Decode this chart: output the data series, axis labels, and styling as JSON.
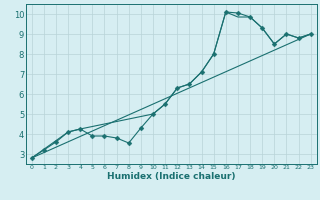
{
  "title": "",
  "xlabel": "Humidex (Indice chaleur)",
  "background_color": "#d6eef2",
  "grid_color": "#b8d4d8",
  "line_color": "#1a7070",
  "marker_size": 2.5,
  "xlim": [
    -0.5,
    23.5
  ],
  "ylim": [
    2.5,
    10.5
  ],
  "xticks": [
    0,
    1,
    2,
    3,
    4,
    5,
    6,
    7,
    8,
    9,
    10,
    11,
    12,
    13,
    14,
    15,
    16,
    17,
    18,
    19,
    20,
    21,
    22,
    23
  ],
  "yticks": [
    3,
    4,
    5,
    6,
    7,
    8,
    9,
    10
  ],
  "line1_x": [
    0,
    1,
    2,
    3,
    4,
    5,
    6,
    7,
    8,
    9,
    10,
    11,
    12,
    13,
    14,
    15,
    16,
    17,
    18,
    19,
    20,
    21,
    22,
    23
  ],
  "line1_y": [
    2.8,
    3.2,
    3.6,
    4.1,
    4.25,
    3.9,
    3.9,
    3.8,
    3.55,
    4.3,
    5.0,
    5.5,
    6.3,
    6.5,
    7.1,
    8.0,
    10.1,
    10.05,
    9.85,
    9.3,
    8.5,
    9.0,
    8.8,
    9.0
  ],
  "line2_x": [
    0,
    3,
    4,
    10,
    11,
    12,
    13,
    14,
    15,
    16,
    17,
    18,
    19,
    20,
    21,
    22,
    23
  ],
  "line2_y": [
    2.8,
    4.1,
    4.25,
    5.0,
    5.5,
    6.3,
    6.5,
    7.1,
    8.0,
    10.1,
    9.85,
    9.85,
    9.3,
    8.5,
    9.0,
    8.8,
    9.0
  ],
  "line3_x": [
    0,
    23
  ],
  "line3_y": [
    2.8,
    9.0
  ]
}
